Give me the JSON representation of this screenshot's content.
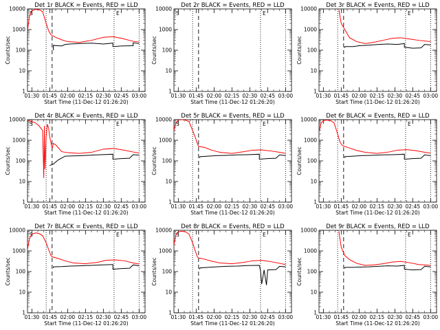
{
  "chart_data": {
    "type": "line",
    "layout": "3x3 grid",
    "y_scale": "log",
    "ylim": [
      1,
      10000
    ],
    "xlim": [
      "01:26:20",
      "03:05:00"
    ],
    "x_tick_labels": [
      "01:30",
      "01:45",
      "02:00",
      "02:15",
      "02:30",
      "02:45",
      "03:00"
    ],
    "y_tick_labels": [
      "1",
      "10",
      "100",
      "1000",
      "10000"
    ],
    "xlabel": "Start Time (11-Dec-12 01:26:20)",
    "ylabel": "Counts/sec",
    "series_colors": {
      "events": "#000000",
      "lld": "#ff0000"
    },
    "marker_labels": {
      "start": "S",
      "end": "E"
    },
    "markers": {
      "dotted_lines": [
        "01:42",
        "02:39",
        "03:00"
      ],
      "dashed_line": "01:47"
    },
    "panels": [
      {
        "title": "Det 1r BLACK = Events, RED = LLD",
        "show_start_label": true,
        "show_end_label": true,
        "lld": {
          "x": [
            "01:26:20",
            "01:28",
            "01:30",
            "01:33",
            "01:36",
            "01:39",
            "01:42",
            "01:44",
            "01:46",
            "01:47",
            "01:50",
            "01:55",
            "02:00",
            "02:10",
            "02:20",
            "02:30",
            "02:38",
            "02:45",
            "02:55",
            "03:00"
          ],
          "y": [
            900,
            4500,
            8000,
            9500,
            9200,
            7500,
            2000,
            900,
            560,
            520,
            420,
            320,
            260,
            240,
            300,
            420,
            450,
            380,
            270,
            250
          ]
        },
        "events": {
          "x": [
            "01:48",
            "01:48",
            "01:55",
            "01:58",
            "02:02",
            "02:10",
            "02:20",
            "02:30",
            "02:38",
            "02:38",
            "02:45",
            "02:55",
            "02:55",
            "03:00"
          ],
          "y": [
            100,
            170,
            160,
            190,
            200,
            210,
            220,
            200,
            220,
            150,
            160,
            165,
            230,
            210
          ]
        }
      },
      {
        "title": "Det 2r BLACK = Events, RED = LLD",
        "show_start_label": true,
        "show_end_label": true,
        "lld": {
          "x": [],
          "y": []
        },
        "events": {
          "x": [],
          "y": []
        }
      },
      {
        "title": "Det 3r BLACK = Events, RED = LLD",
        "show_start_label": false,
        "show_end_label": true,
        "lld": {
          "x": [
            "01:43",
            "01:45",
            "01:48",
            "01:52",
            "01:58",
            "02:05",
            "02:12",
            "02:20",
            "02:28",
            "02:35",
            "02:42",
            "02:50",
            "03:00"
          ],
          "y": [
            9000,
            2000,
            1000,
            400,
            260,
            210,
            240,
            300,
            380,
            400,
            350,
            300,
            260
          ]
        },
        "events": {
          "x": [
            "01:48",
            "01:48",
            "01:55",
            "02:00",
            "02:08",
            "02:16",
            "02:24",
            "02:32",
            "02:38",
            "02:38",
            "02:45",
            "02:52",
            "02:55",
            "03:00"
          ],
          "y": [
            130,
            150,
            150,
            165,
            175,
            190,
            200,
            190,
            210,
            140,
            125,
            130,
            190,
            180
          ]
        }
      },
      {
        "title": "Det 4r BLACK = Events, RED = LLD",
        "show_start_label": true,
        "show_end_label": true,
        "lld": {
          "x": [
            "01:26:20",
            "01:29",
            "01:33",
            "01:36",
            "01:39",
            "01:40",
            "01:40:30",
            "01:41",
            "01:42",
            "01:43",
            "01:44",
            "01:45",
            "01:47",
            "01:48",
            "01:50",
            "01:55",
            "02:00",
            "02:10",
            "02:20",
            "02:30",
            "02:38",
            "02:45",
            "02:55",
            "03:00"
          ],
          "y": [
            9000,
            8500,
            7000,
            5000,
            3000,
            15,
            5000,
            40,
            1500,
            6000,
            4000,
            1500,
            400,
            700,
            600,
            280,
            250,
            230,
            260,
            370,
            400,
            350,
            270,
            240
          ]
        },
        "events": {
          "x": [
            "01:45",
            "01:48",
            "01:52",
            "01:58",
            "02:05",
            "02:12",
            "02:20",
            "02:28",
            "02:38",
            "02:38",
            "02:45",
            "02:52",
            "02:55",
            "03:00"
          ],
          "y": [
            60,
            70,
            110,
            170,
            175,
            180,
            190,
            200,
            210,
            120,
            130,
            135,
            200,
            190
          ]
        }
      },
      {
        "title": "Det 5r BLACK = Events, RED = LLD",
        "show_start_label": true,
        "show_end_label": true,
        "lld": {
          "x": [
            "01:26:20",
            "01:28",
            "01:30",
            "01:33",
            "01:36",
            "01:39",
            "01:42",
            "01:44",
            "01:46",
            "01:47",
            "01:52",
            "01:58",
            "02:05",
            "02:15",
            "02:25",
            "02:32",
            "02:40",
            "02:48",
            "02:55",
            "03:00"
          ],
          "y": [
            3000,
            7000,
            9500,
            10000,
            9500,
            8000,
            3000,
            1500,
            700,
            500,
            450,
            330,
            260,
            230,
            280,
            330,
            340,
            300,
            260,
            230
          ]
        },
        "events": {
          "x": [
            "01:48",
            "01:48",
            "01:55",
            "02:02",
            "02:10",
            "02:20",
            "02:28",
            "02:38",
            "02:38",
            "02:45",
            "02:52",
            "02:55",
            "03:00"
          ],
          "y": [
            140,
            160,
            170,
            180,
            185,
            195,
            200,
            210,
            120,
            130,
            135,
            195,
            180
          ]
        }
      },
      {
        "title": "Det 6r BLACK = Events, RED = LLD",
        "show_start_label": false,
        "show_end_label": true,
        "lld": {
          "x": [
            "01:26:20",
            "01:28",
            "01:30",
            "01:33",
            "01:36",
            "01:39",
            "01:42",
            "01:44",
            "01:46",
            "01:47",
            "01:52",
            "01:58",
            "02:05",
            "02:15",
            "02:25",
            "02:32",
            "02:40",
            "02:48",
            "02:55",
            "03:00"
          ],
          "y": [
            2500,
            6500,
            9000,
            9500,
            9000,
            7000,
            2000,
            800,
            560,
            520,
            420,
            320,
            260,
            230,
            270,
            330,
            350,
            310,
            260,
            240
          ]
        },
        "events": {
          "x": [
            "01:48",
            "01:48",
            "01:55",
            "02:02",
            "02:10",
            "02:20",
            "02:28",
            "02:38",
            "02:38",
            "02:45",
            "02:52",
            "02:55",
            "03:00"
          ],
          "y": [
            140,
            160,
            170,
            180,
            185,
            195,
            200,
            210,
            120,
            130,
            135,
            195,
            180
          ]
        }
      },
      {
        "title": "Det 7r BLACK = Events, RED = LLD",
        "show_start_label": true,
        "show_end_label": true,
        "lld": {
          "x": [
            "01:26:20",
            "01:28",
            "01:30",
            "01:33",
            "01:36",
            "01:39",
            "01:42",
            "01:44",
            "01:46",
            "01:47",
            "01:52",
            "01:58",
            "02:05",
            "02:15",
            "02:25",
            "02:32",
            "02:40",
            "02:48",
            "02:55",
            "03:00"
          ],
          "y": [
            1200,
            4000,
            6500,
            7500,
            7000,
            5500,
            2500,
            1200,
            600,
            520,
            430,
            330,
            260,
            240,
            280,
            350,
            370,
            330,
            260,
            230
          ]
        },
        "events": {
          "x": [
            "01:48",
            "01:48",
            "01:55",
            "02:02",
            "02:10",
            "02:20",
            "02:28",
            "02:38",
            "02:38",
            "02:45",
            "02:52",
            "02:55",
            "03:00"
          ],
          "y": [
            150,
            170,
            175,
            185,
            190,
            200,
            210,
            220,
            130,
            140,
            145,
            210,
            190
          ]
        }
      },
      {
        "title": "Det 8r BLACK = Events, RED = LLD",
        "show_start_label": true,
        "show_end_label": true,
        "lld": {
          "x": [
            "01:26:20",
            "01:28",
            "01:30",
            "01:33",
            "01:36",
            "01:39",
            "01:42",
            "01:44",
            "01:46",
            "01:47",
            "01:52",
            "01:58",
            "02:05",
            "02:15",
            "02:25",
            "02:32",
            "02:40",
            "02:48",
            "02:55",
            "03:00"
          ],
          "y": [
            2000,
            6000,
            8500,
            9000,
            8500,
            6500,
            2500,
            1100,
            520,
            450,
            400,
            320,
            260,
            240,
            280,
            330,
            350,
            300,
            250,
            220
          ]
        },
        "events": {
          "x": [
            "01:48",
            "01:48",
            "01:55",
            "02:02",
            "02:10",
            "02:20",
            "02:28",
            "02:38",
            "02:39",
            "02:40",
            "02:42",
            "02:44",
            "02:45",
            "02:52",
            "02:55",
            "03:00"
          ],
          "y": [
            130,
            150,
            160,
            170,
            180,
            185,
            195,
            200,
            110,
            25,
            120,
            22,
            120,
            125,
            180,
            170
          ]
        }
      },
      {
        "title": "Det 9r BLACK = Events, RED = LLD",
        "show_start_label": false,
        "show_end_label": true,
        "lld": {
          "x": [
            "01:43",
            "01:45",
            "01:48",
            "01:52",
            "01:58",
            "02:05",
            "02:12",
            "02:20",
            "02:28",
            "02:35",
            "02:42",
            "02:50",
            "03:00"
          ],
          "y": [
            9000,
            1500,
            600,
            380,
            250,
            200,
            210,
            240,
            290,
            310,
            270,
            220,
            200
          ]
        },
        "events": {
          "x": [
            "01:48",
            "01:48",
            "01:55",
            "02:00",
            "02:08",
            "02:16",
            "02:24",
            "02:32",
            "02:38",
            "02:38",
            "02:45",
            "02:52",
            "02:55",
            "03:00"
          ],
          "y": [
            140,
            160,
            160,
            165,
            170,
            180,
            190,
            185,
            200,
            130,
            120,
            125,
            180,
            170
          ]
        }
      }
    ]
  }
}
